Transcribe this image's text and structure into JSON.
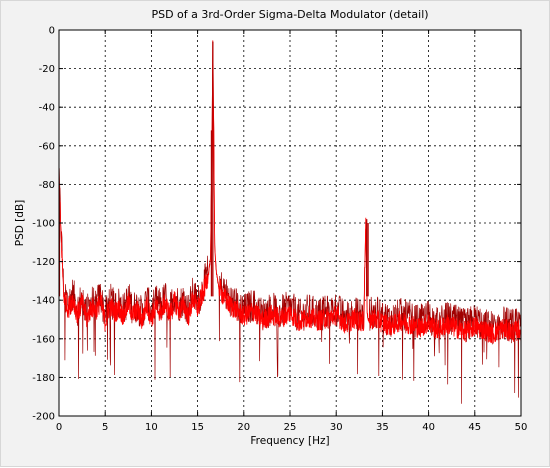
{
  "chart_data": {
    "type": "line",
    "title": "PSD of a 3rd-Order Sigma-Delta Modulator (detail)",
    "xlabel": "Frequency [Hz]",
    "ylabel": "PSD [dB]",
    "xlim": [
      0,
      50
    ],
    "ylim": [
      -200,
      0
    ],
    "x_ticks": [
      0,
      5,
      10,
      15,
      20,
      25,
      30,
      35,
      40,
      45,
      50
    ],
    "y_ticks": [
      0,
      -20,
      -40,
      -60,
      -80,
      -100,
      -120,
      -140,
      -160,
      -180,
      -200
    ],
    "x_tick_labels": [
      "0",
      "5",
      "10",
      "15",
      "20",
      "25",
      "30",
      "35",
      "40",
      "45",
      "50"
    ],
    "y_tick_labels": [
      "0",
      "-20",
      "-40",
      "-60",
      "-80",
      "-100",
      "-120",
      "-140",
      "-160",
      "-180",
      "-200"
    ],
    "grid": true,
    "series": [
      {
        "color": "#ff0000",
        "x": [
          0,
          0.5,
          1,
          1.5,
          2,
          2.5,
          3,
          3.5,
          4,
          4.5,
          5,
          5.5,
          6,
          6.5,
          7,
          7.5,
          8,
          8.5,
          9,
          9.5,
          10,
          10.5,
          11,
          11.5,
          12,
          12.5,
          13,
          13.5,
          14,
          14.5,
          15,
          15.5,
          15.9,
          16.2,
          16.4,
          16.55,
          16.65,
          16.75,
          16.85,
          17.0,
          17.2,
          17.5,
          18,
          18.5,
          19,
          19.5,
          20,
          21,
          22,
          23,
          24,
          25,
          26,
          27,
          28,
          29,
          30,
          31,
          32,
          33,
          33.2,
          33.35,
          33.5,
          34,
          35,
          36,
          37,
          38,
          39,
          40,
          41,
          42,
          43,
          44,
          45,
          46,
          47,
          48,
          49,
          50
        ],
        "y": [
          -80,
          -138,
          -145,
          -140,
          -148,
          -142,
          -150,
          -144,
          -146,
          -141,
          -152,
          -143,
          -147,
          -145,
          -149,
          -142,
          -148,
          -146,
          -151,
          -143,
          -150,
          -144,
          -147,
          -142,
          -148,
          -141,
          -146,
          -143,
          -149,
          -140,
          -145,
          -138,
          -132,
          -126,
          -118,
          -60,
          -6,
          -52,
          -112,
          -124,
          -131,
          -136,
          -140,
          -143,
          -145,
          -147,
          -149,
          -146,
          -151,
          -148,
          -150,
          -147,
          -152,
          -149,
          -151,
          -150,
          -148,
          -153,
          -150,
          -152,
          -98,
          -146,
          -151,
          -150,
          -152,
          -154,
          -151,
          -153,
          -155,
          -152,
          -156,
          -153,
          -155,
          -157,
          -154,
          -156,
          -158,
          -155,
          -157,
          -156
        ]
      }
    ],
    "noise_floor": {
      "color": "#a00000",
      "low_band_mean": -145,
      "high_band_mean": -155,
      "spread_db": 18
    }
  }
}
